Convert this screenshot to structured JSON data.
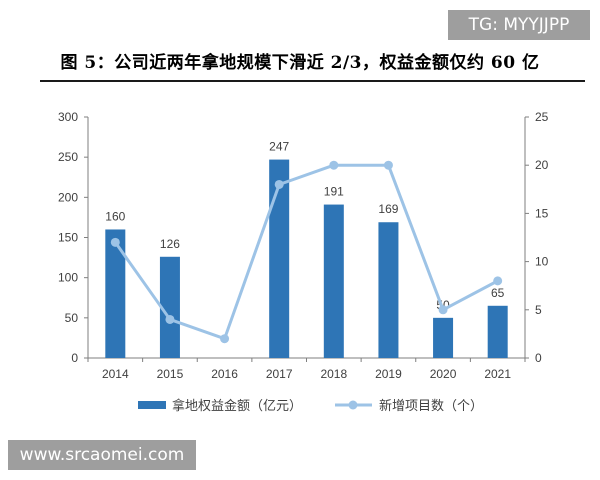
{
  "watermark_top": "TG: MYYJJPP",
  "watermark_bottom": "www.srcaomei.com",
  "title": "图 5：公司近两年拿地规模下滑近 2/3，权益金额仅约 60 亿",
  "colors": {
    "bar": "#2e75b6",
    "line": "#9dc3e6",
    "axis": "#7f7f7f",
    "label": "#404040"
  },
  "chart_data": {
    "type": "bar",
    "categories": [
      "2014",
      "2015",
      "2016",
      "2017",
      "2018",
      "2019",
      "2020",
      "2021"
    ],
    "series": [
      {
        "name": "拿地权益金额（亿元）",
        "type": "bar",
        "axis": "left",
        "values": [
          160,
          126,
          null,
          247,
          191,
          169,
          50,
          65
        ],
        "labels": [
          "160",
          "126",
          "",
          "247",
          "191",
          "169",
          "50",
          "65"
        ]
      },
      {
        "name": "新增项目数（个）",
        "type": "line",
        "axis": "right",
        "values": [
          12,
          4,
          2,
          18,
          20,
          20,
          5,
          8
        ]
      }
    ],
    "y_left": {
      "lim": [
        0,
        300
      ],
      "ticks": [
        0,
        50,
        100,
        150,
        200,
        250,
        300
      ]
    },
    "y_right": {
      "lim": [
        0,
        25
      ],
      "ticks": [
        0,
        5,
        10,
        15,
        20,
        25
      ]
    },
    "legend_position": "bottom"
  }
}
